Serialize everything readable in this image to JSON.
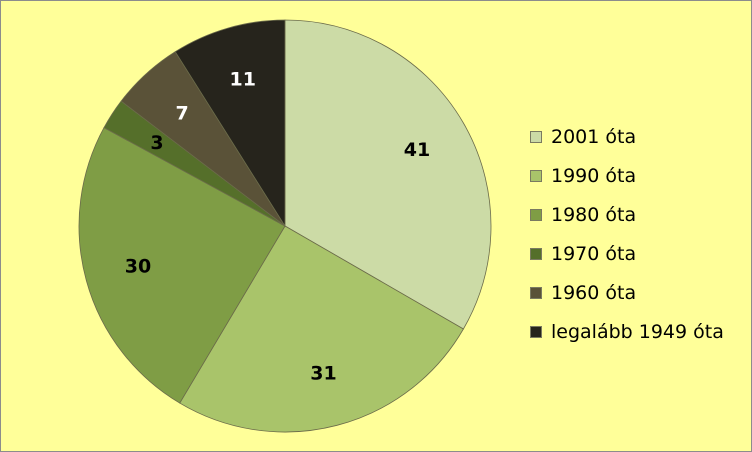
{
  "chart_data": {
    "type": "pie",
    "categories": [
      "2001 óta",
      "1990 óta",
      "1980 óta",
      "1970 óta",
      "1960 óta",
      "legalább 1949 óta"
    ],
    "values": [
      41,
      31,
      30,
      3,
      7,
      11
    ],
    "data_labels": [
      "41",
      "31",
      "30",
      "3",
      "7",
      "11"
    ],
    "colors": [
      "#ccdba6",
      "#a9c46a",
      "#7f9d45",
      "#556f2a",
      "#5a5238",
      "#26241c"
    ],
    "label_colors": [
      "#000000",
      "#000000",
      "#000000",
      "#000000",
      "#ffffff",
      "#ffffff"
    ],
    "start_angle_deg": 0,
    "direction": "clockwise",
    "legend_position": "right",
    "background": "#ffff99"
  }
}
